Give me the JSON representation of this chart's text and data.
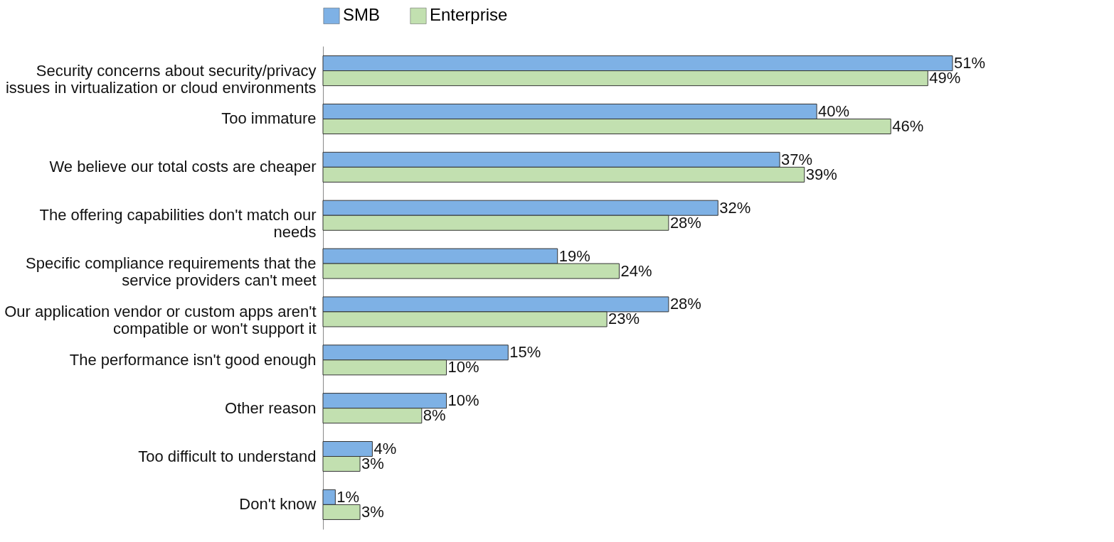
{
  "chart_data": {
    "type": "bar",
    "orientation": "horizontal",
    "legend": "top",
    "categories": [
      "Security concerns about security/privacy issues in virtualization or cloud environments",
      "Too immature",
      "We believe our total costs are cheaper",
      "The offering capabilities don't match our needs",
      "Specific compliance requirements that the service providers can't meet",
      "Our application vendor or custom apps aren't compatible or won't support it",
      "The performance isn't good enough",
      "Other reason",
      "Too difficult to understand",
      "Don't know"
    ],
    "series": [
      {
        "name": "SMB",
        "color": "#7eb1e5",
        "values": [
          51,
          40,
          37,
          32,
          19,
          28,
          15,
          10,
          4,
          1
        ],
        "value_labels": [
          "51%",
          "40%",
          "37%",
          "32%",
          "19%",
          "28%",
          "15%",
          "10%",
          "4%",
          "1%"
        ]
      },
      {
        "name": "Enterprise",
        "color": "#c2e0b0",
        "values": [
          49,
          46,
          39,
          28,
          24,
          23,
          10,
          8,
          3,
          3
        ],
        "value_labels": [
          "49%",
          "46%",
          "39%",
          "28%",
          "24%",
          "23%",
          "10%",
          "8%",
          "3%",
          "3%"
        ]
      }
    ]
  }
}
